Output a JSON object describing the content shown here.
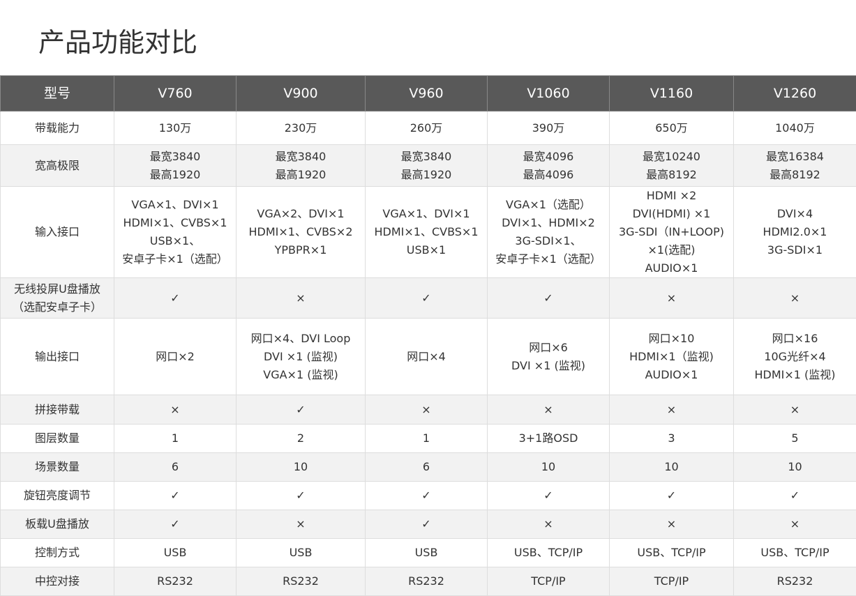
{
  "title": "产品功能对比",
  "table": {
    "header": [
      "型号",
      "V760",
      "V900",
      "V960",
      "V1060",
      "V1160",
      "V1260"
    ],
    "rows": [
      {
        "label": [
          "带载能力"
        ],
        "cells": [
          [
            "130万"
          ],
          [
            "230万"
          ],
          [
            "260万"
          ],
          [
            "390万"
          ],
          [
            "650万"
          ],
          [
            "1040万"
          ]
        ]
      },
      {
        "label": [
          "宽高极限"
        ],
        "cells": [
          [
            "最宽3840",
            "最高1920"
          ],
          [
            "最宽3840",
            "最高1920"
          ],
          [
            "最宽3840",
            "最高1920"
          ],
          [
            "最宽4096",
            "最高4096"
          ],
          [
            "最宽10240",
            "最高8192"
          ],
          [
            "最宽16384",
            "最高8192"
          ]
        ]
      },
      {
        "label": [
          "输入接口"
        ],
        "cells": [
          [
            "VGA×1、DVI×1",
            "HDMI×1、CVBS×1",
            "USB×1、",
            "安卓子卡×1（选配）"
          ],
          [
            "VGA×2、DVI×1",
            "HDMI×1、CVBS×2",
            "YPBPR×1"
          ],
          [
            "VGA×1、DVI×1",
            "HDMI×1、CVBS×1",
            "USB×1"
          ],
          [
            "VGA×1（选配）",
            "DVI×1、HDMI×2",
            "3G-SDI×1、",
            "安卓子卡×1（选配）"
          ],
          [
            "HDMI ×2",
            "DVI(HDMI) ×1",
            "3G-SDI（IN+LOOP)",
            "×1(选配)",
            "AUDIO×1"
          ],
          [
            "DVI×4",
            "HDMI2.0×1",
            "3G-SDI×1"
          ]
        ]
      },
      {
        "label": [
          "无线投屏U盘播放",
          "（选配安卓子卡）"
        ],
        "cells": [
          [
            "✓"
          ],
          [
            "×"
          ],
          [
            "✓"
          ],
          [
            "✓"
          ],
          [
            "×"
          ],
          [
            "×"
          ]
        ]
      },
      {
        "label": [
          "输出接口"
        ],
        "cells": [
          [
            "网口×2"
          ],
          [
            "网口×4、DVI Loop",
            "DVI ×1 (监视)",
            "VGA×1 (监视)"
          ],
          [
            "网口×4"
          ],
          [
            "网口×6",
            "DVI ×1 (监视)"
          ],
          [
            "网口×10",
            "HDMI×1（监视)",
            "AUDIO×1"
          ],
          [
            "网口×16",
            "10G光纤×4",
            "HDMI×1 (监视)"
          ]
        ]
      },
      {
        "label": [
          "拼接带载"
        ],
        "cells": [
          [
            "×"
          ],
          [
            "✓"
          ],
          [
            "×"
          ],
          [
            "×"
          ],
          [
            "×"
          ],
          [
            "×"
          ]
        ]
      },
      {
        "label": [
          "图层数量"
        ],
        "cells": [
          [
            "1"
          ],
          [
            "2"
          ],
          [
            "1"
          ],
          [
            "3+1路OSD"
          ],
          [
            "3"
          ],
          [
            "5"
          ]
        ]
      },
      {
        "label": [
          "场景数量"
        ],
        "cells": [
          [
            "6"
          ],
          [
            "10"
          ],
          [
            "6"
          ],
          [
            "10"
          ],
          [
            "10"
          ],
          [
            "10"
          ]
        ]
      },
      {
        "label": [
          "旋钮亮度调节"
        ],
        "cells": [
          [
            "✓"
          ],
          [
            "✓"
          ],
          [
            "✓"
          ],
          [
            "✓"
          ],
          [
            "✓"
          ],
          [
            "✓"
          ]
        ]
      },
      {
        "label": [
          "板载U盘播放"
        ],
        "cells": [
          [
            "✓"
          ],
          [
            "×"
          ],
          [
            "✓"
          ],
          [
            "×"
          ],
          [
            "×"
          ],
          [
            "×"
          ]
        ]
      },
      {
        "label": [
          "控制方式"
        ],
        "cells": [
          [
            "USB"
          ],
          [
            "USB"
          ],
          [
            "USB"
          ],
          [
            "USB、TCP/IP"
          ],
          [
            "USB、TCP/IP"
          ],
          [
            "USB、TCP/IP"
          ]
        ]
      },
      {
        "label": [
          "中控对接"
        ],
        "cells": [
          [
            "RS232"
          ],
          [
            "RS232"
          ],
          [
            "RS232"
          ],
          [
            "TCP/IP"
          ],
          [
            "TCP/IP"
          ],
          [
            "RS232"
          ]
        ]
      }
    ]
  }
}
